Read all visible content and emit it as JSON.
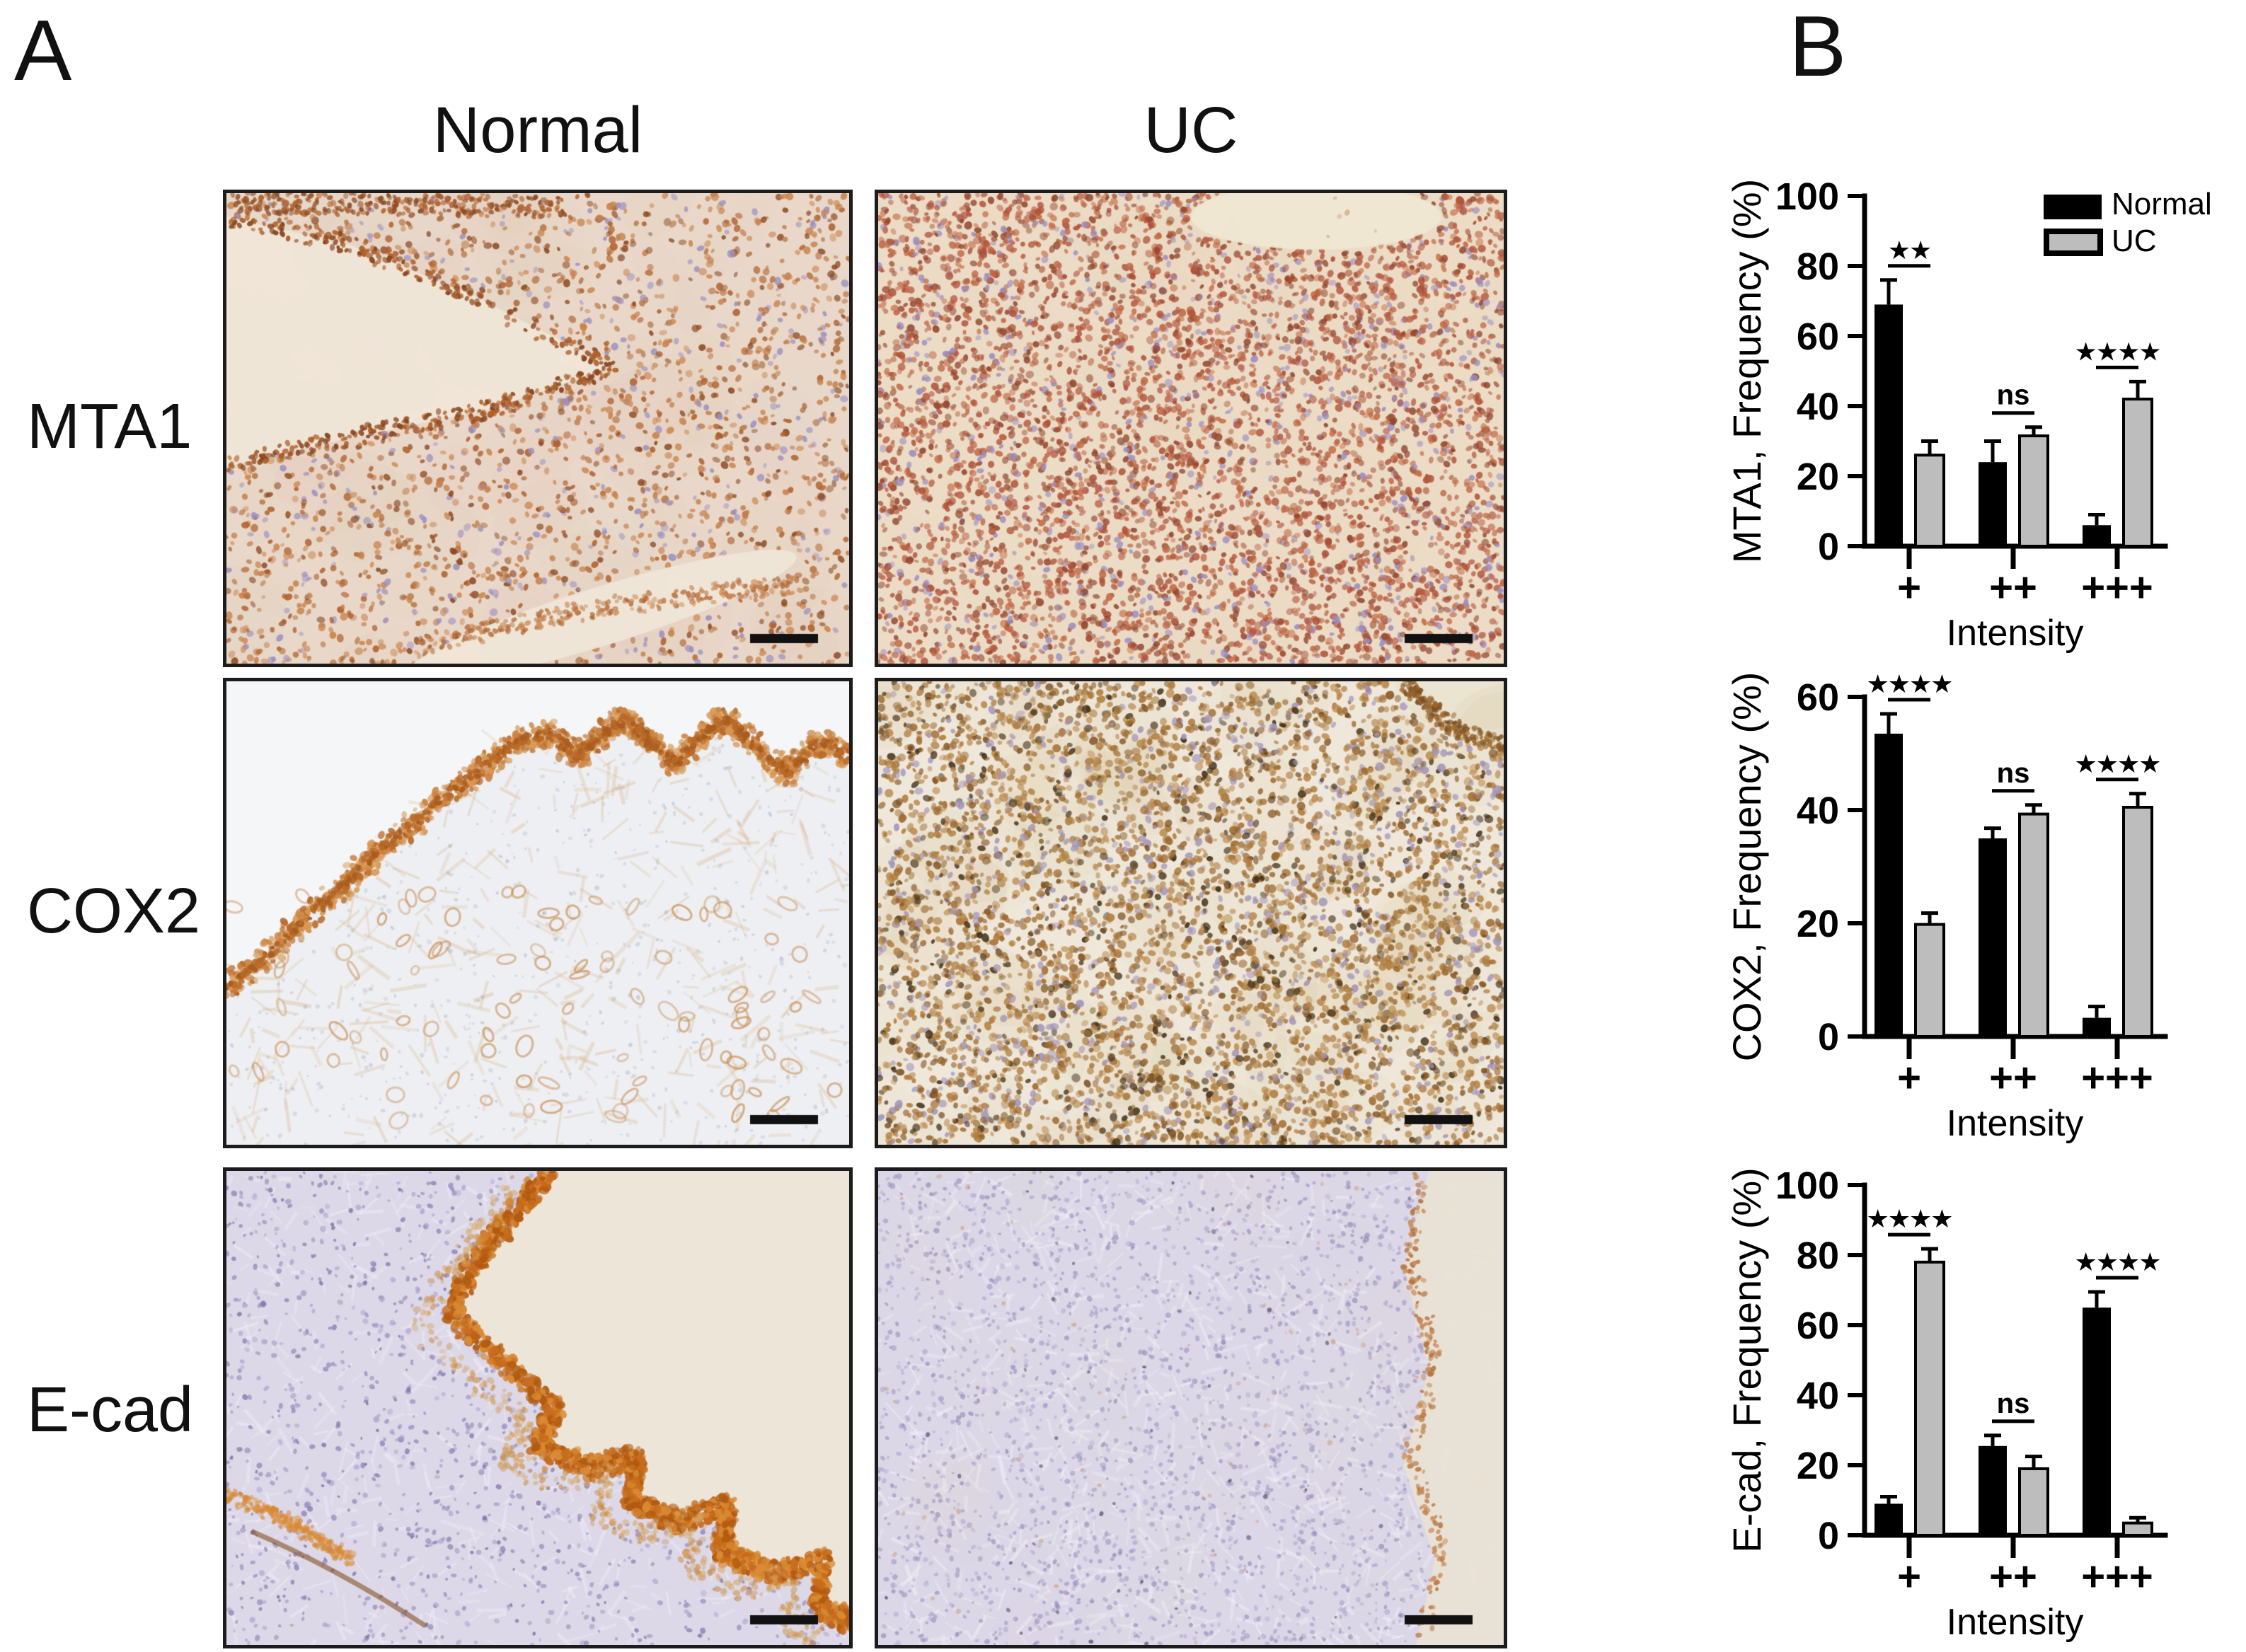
{
  "figure": {
    "background": "#ffffff",
    "panel_a": {
      "label": "A"
    },
    "panel_b": {
      "label": "B"
    },
    "column_headers": [
      "Normal",
      "UC"
    ],
    "row_labels": [
      "MTA1",
      "COX2",
      "E-cad"
    ],
    "scalebar_color": "#111111",
    "micrographs": [
      {
        "marker": "MTA1",
        "condition": "Normal",
        "pattern": "sparse-glandular",
        "bg": "#e9d8c9",
        "lumen": "#efe5d7",
        "palette": [
          "#b0622d",
          "#c8824a",
          "#8c4a22",
          "#9b8fc0"
        ]
      },
      {
        "marker": "MTA1",
        "condition": "UC",
        "pattern": "dense-red",
        "bg": "#ecdcc6",
        "lumen": "#f0e8d3",
        "palette": [
          "#b05238",
          "#c26a45",
          "#93462e",
          "#9a8cc2"
        ]
      },
      {
        "marker": "COX2",
        "condition": "Normal",
        "pattern": "apical-band",
        "bg": "#edeff2",
        "lumen": "#f4f6f8",
        "palette": [
          "#cd8440",
          "#d99a55",
          "#a9b4c6",
          "#b96a28"
        ]
      },
      {
        "marker": "COX2",
        "condition": "UC",
        "pattern": "dense-brown",
        "bg": "#efe8da",
        "lumen": "#eae3d0",
        "palette": [
          "#9c672c",
          "#b07c3c",
          "#7e501f",
          "#c08d52"
        ]
      },
      {
        "marker": "E-cad",
        "condition": "Normal",
        "pattern": "membranous-folds",
        "bg": "#dcd8e8",
        "lumen": "#ece5d8",
        "palette": [
          "#c76d1d",
          "#d98a33",
          "#b25a10",
          "#8f86b8"
        ]
      },
      {
        "marker": "E-cad",
        "condition": "UC",
        "pattern": "pale-blue",
        "bg": "#dbd7e7",
        "lumen": "#e9e2d4",
        "palette": [
          "#978cc0",
          "#b0a7cf",
          "#c98a55",
          "#54496e"
        ]
      }
    ]
  },
  "chart_data": [
    {
      "type": "bar",
      "ylabel": "MTA1, Frequency (%)",
      "xlabel": "Intensity",
      "categories": [
        "+",
        "++",
        "+++"
      ],
      "ylim": [
        0,
        100
      ],
      "yticks": [
        0,
        20,
        40,
        60,
        80,
        100
      ],
      "series": [
        {
          "name": "Normal",
          "color": "#000000",
          "values": [
            69,
            24,
            6
          ],
          "errors": [
            7,
            6,
            3
          ]
        },
        {
          "name": "UC",
          "color": "#bdbdbd",
          "values": [
            26,
            31.5,
            42
          ],
          "errors": [
            4,
            2.5,
            5
          ]
        }
      ],
      "significance": [
        "**",
        "ns",
        "****"
      ],
      "legend_position": "top-right",
      "grid": false
    },
    {
      "type": "bar",
      "ylabel": "COX2, Frequency (%)",
      "xlabel": "Intensity",
      "categories": [
        "+",
        "++",
        "+++"
      ],
      "ylim": [
        0,
        60
      ],
      "yticks": [
        0,
        20,
        40,
        60
      ],
      "series": [
        {
          "name": "Normal",
          "color": "#000000",
          "values": [
            53.5,
            35,
            3.3
          ],
          "errors": [
            3.5,
            1.8,
            2
          ]
        },
        {
          "name": "UC",
          "color": "#bdbdbd",
          "values": [
            19.8,
            39.3,
            40.5
          ],
          "errors": [
            2,
            1.6,
            2.4
          ]
        }
      ],
      "significance": [
        "****",
        "ns",
        "****"
      ],
      "legend_position": "none",
      "grid": false
    },
    {
      "type": "bar",
      "ylabel": "E-cad, Frequency (%)",
      "xlabel": "Intensity",
      "categories": [
        "+",
        "++",
        "+++"
      ],
      "ylim": [
        0,
        100
      ],
      "yticks": [
        0,
        20,
        40,
        60,
        80,
        100
      ],
      "series": [
        {
          "name": "Normal",
          "color": "#000000",
          "values": [
            9,
            25.5,
            65
          ],
          "errors": [
            2,
            3,
            4.5
          ]
        },
        {
          "name": "UC",
          "color": "#bdbdbd",
          "values": [
            78,
            19,
            3.5
          ],
          "errors": [
            3.8,
            3.5,
            1.5
          ]
        }
      ],
      "significance": [
        "****",
        "ns",
        "****"
      ],
      "legend_position": "none",
      "grid": false
    }
  ],
  "style": {
    "normal_color": "#000000",
    "uc_fill": "#bdbdbd",
    "axis_color": "#000000"
  }
}
